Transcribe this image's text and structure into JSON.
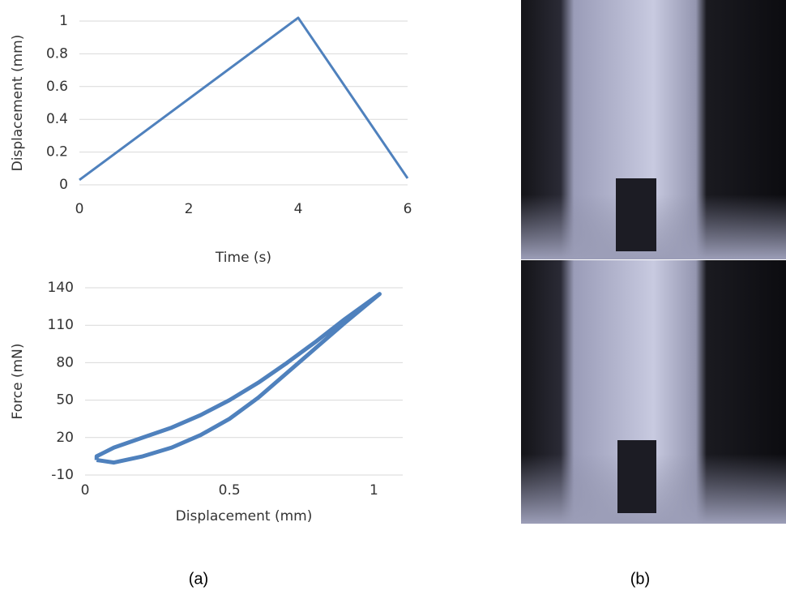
{
  "chart_data": [
    {
      "type": "line",
      "x_label": "Time (s)",
      "y_label": "Displacement (mm)",
      "x": [
        0,
        4,
        6
      ],
      "values": [
        0.03,
        1.02,
        0.04
      ],
      "color": "#4f81bd",
      "xlim": [
        0,
        6
      ],
      "xticks": [
        0,
        2,
        4,
        6
      ],
      "ylim": [
        0,
        1
      ],
      "yticks": [
        0,
        0.2,
        0.4,
        0.6,
        0.8,
        1
      ],
      "grid": true
    },
    {
      "type": "line",
      "x_label": "Displacement (mm)",
      "y_label": "Force (mN)",
      "x": [
        0.04,
        0.1,
        0.2,
        0.3,
        0.4,
        0.5,
        0.6,
        0.7,
        0.8,
        0.9,
        1.02,
        0.9,
        0.8,
        0.7,
        0.6,
        0.5,
        0.4,
        0.3,
        0.2,
        0.1,
        0.04,
        0.04
      ],
      "values": [
        2,
        0,
        5,
        12,
        22,
        35,
        52,
        72,
        92,
        112,
        135,
        115,
        97,
        80,
        64,
        50,
        38,
        28,
        20,
        12,
        5,
        2
      ],
      "color": "#4f81bd",
      "xlim": [
        0,
        1.1
      ],
      "xticks": [
        0,
        0.5,
        1
      ],
      "ylim": [
        -10,
        140
      ],
      "yticks": [
        -10,
        20,
        50,
        80,
        110,
        140
      ],
      "grid": true
    }
  ],
  "panel_labels": [
    "(a)",
    "(b)"
  ]
}
